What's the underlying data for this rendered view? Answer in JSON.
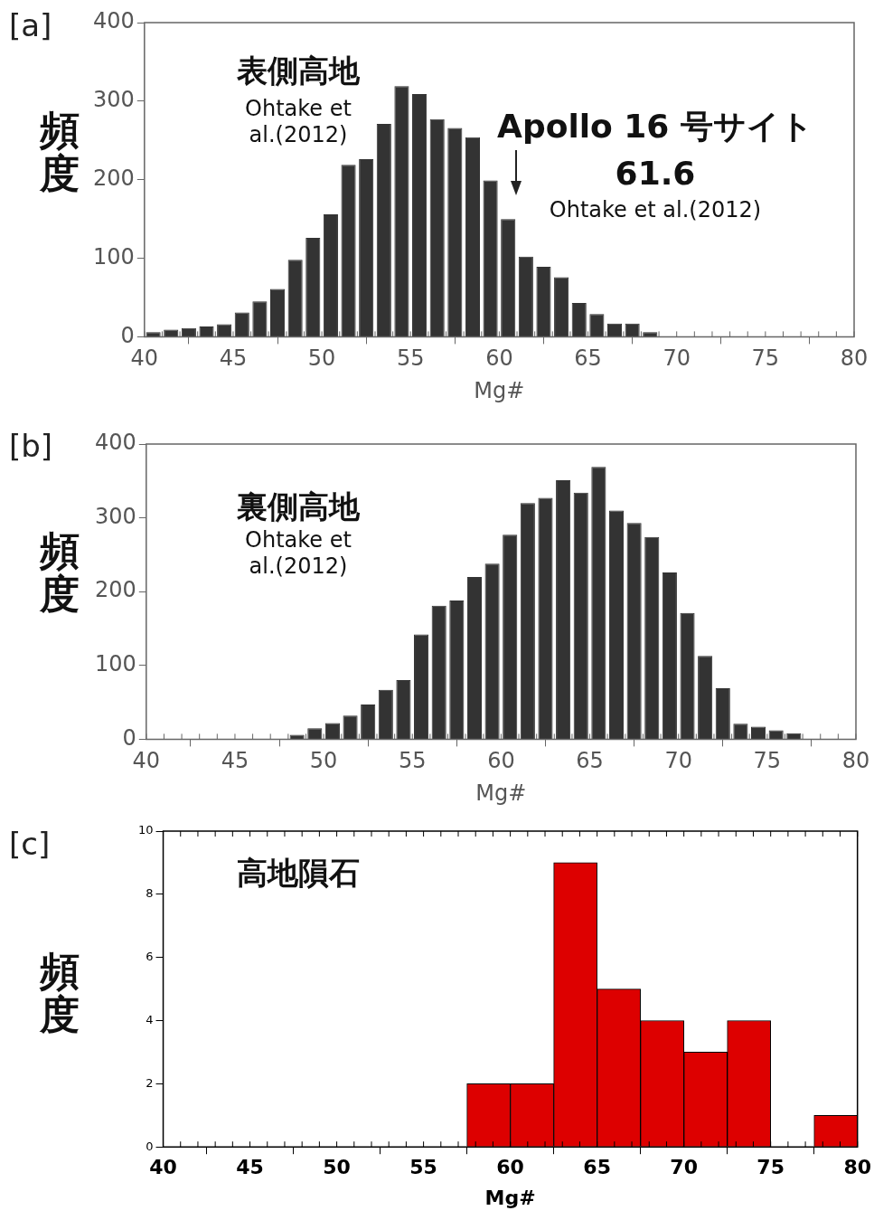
{
  "chart_data": [
    {
      "type": "histogram",
      "title": "[a]",
      "xlabel": "Mg#",
      "ylabel": "頻度",
      "color": "#333333",
      "bins": [
        40,
        41,
        42,
        43,
        44,
        45,
        46,
        47,
        48,
        49,
        50,
        51,
        52,
        53,
        54,
        55,
        56,
        57,
        58,
        59,
        60,
        61,
        62,
        63,
        64,
        65,
        66,
        67,
        68,
        69,
        70,
        71
      ],
      "values": [
        6,
        9,
        11,
        13,
        16,
        31,
        45,
        61,
        98,
        126,
        156,
        219,
        226,
        271,
        319,
        309,
        277,
        266,
        254,
        199,
        150,
        102,
        89,
        76,
        43,
        29,
        17,
        17,
        6,
        null,
        null
      ],
      "xlim": [
        40,
        80
      ],
      "xticks": [
        40,
        45,
        50,
        55,
        60,
        65,
        70,
        75,
        80
      ],
      "ylim": [
        0,
        400
      ],
      "yticks": [
        0,
        100,
        200,
        300,
        400
      ],
      "grid": false,
      "legend": false,
      "annotations": [
        "表側高地",
        "Ohtake et al.(2012)",
        "Apollo 16 号サイト",
        "61.6",
        "Ohtake et al.(2012)"
      ]
    },
    {
      "type": "histogram",
      "title": "[b]",
      "xlabel": "Mg#",
      "ylabel": "頻度",
      "color": "#333333",
      "bins": [
        40,
        41,
        42,
        43,
        44,
        45,
        46,
        47,
        48,
        49,
        50,
        51,
        52,
        53,
        54,
        55,
        56,
        57,
        58,
        59,
        60,
        61,
        62,
        63,
        64,
        65,
        66,
        67,
        68,
        69,
        70,
        71,
        72,
        73,
        74,
        75,
        76,
        77
      ],
      "values": [
        0,
        0,
        0,
        0,
        0,
        null,
        0,
        0,
        6,
        15,
        22,
        32,
        47,
        67,
        80,
        142,
        181,
        188,
        220,
        238,
        277,
        320,
        327,
        351,
        334,
        369,
        310,
        293,
        274,
        226,
        171,
        113,
        69,
        21,
        17,
        12,
        8
      ],
      "xlim": [
        40,
        80
      ],
      "xticks": [
        40,
        45,
        50,
        55,
        60,
        65,
        70,
        75,
        80
      ],
      "ylim": [
        0,
        400
      ],
      "yticks": [
        0,
        100,
        200,
        300,
        400
      ],
      "grid": false,
      "legend": false,
      "annotations": [
        "裏側高地",
        "Ohtake et al.(2012)"
      ]
    },
    {
      "type": "histogram",
      "title": "[c]",
      "xlabel": "Mg#",
      "ylabel": "頻度",
      "color": "#dd0000",
      "bins": [
        57.5,
        60,
        62.5,
        65,
        67.5,
        70,
        72.5,
        75,
        77.5,
        80
      ],
      "values": [
        2,
        2,
        9,
        5,
        4,
        3,
        4,
        0,
        1
      ],
      "xlim": [
        40,
        80
      ],
      "xticks": [
        40,
        45,
        50,
        55,
        60,
        65,
        70,
        75,
        80
      ],
      "ylim": [
        0,
        10
      ],
      "yticks": [
        0,
        2,
        4,
        6,
        8,
        10
      ],
      "grid": false,
      "legend": false,
      "annotations": [
        "高地隕石"
      ]
    }
  ]
}
